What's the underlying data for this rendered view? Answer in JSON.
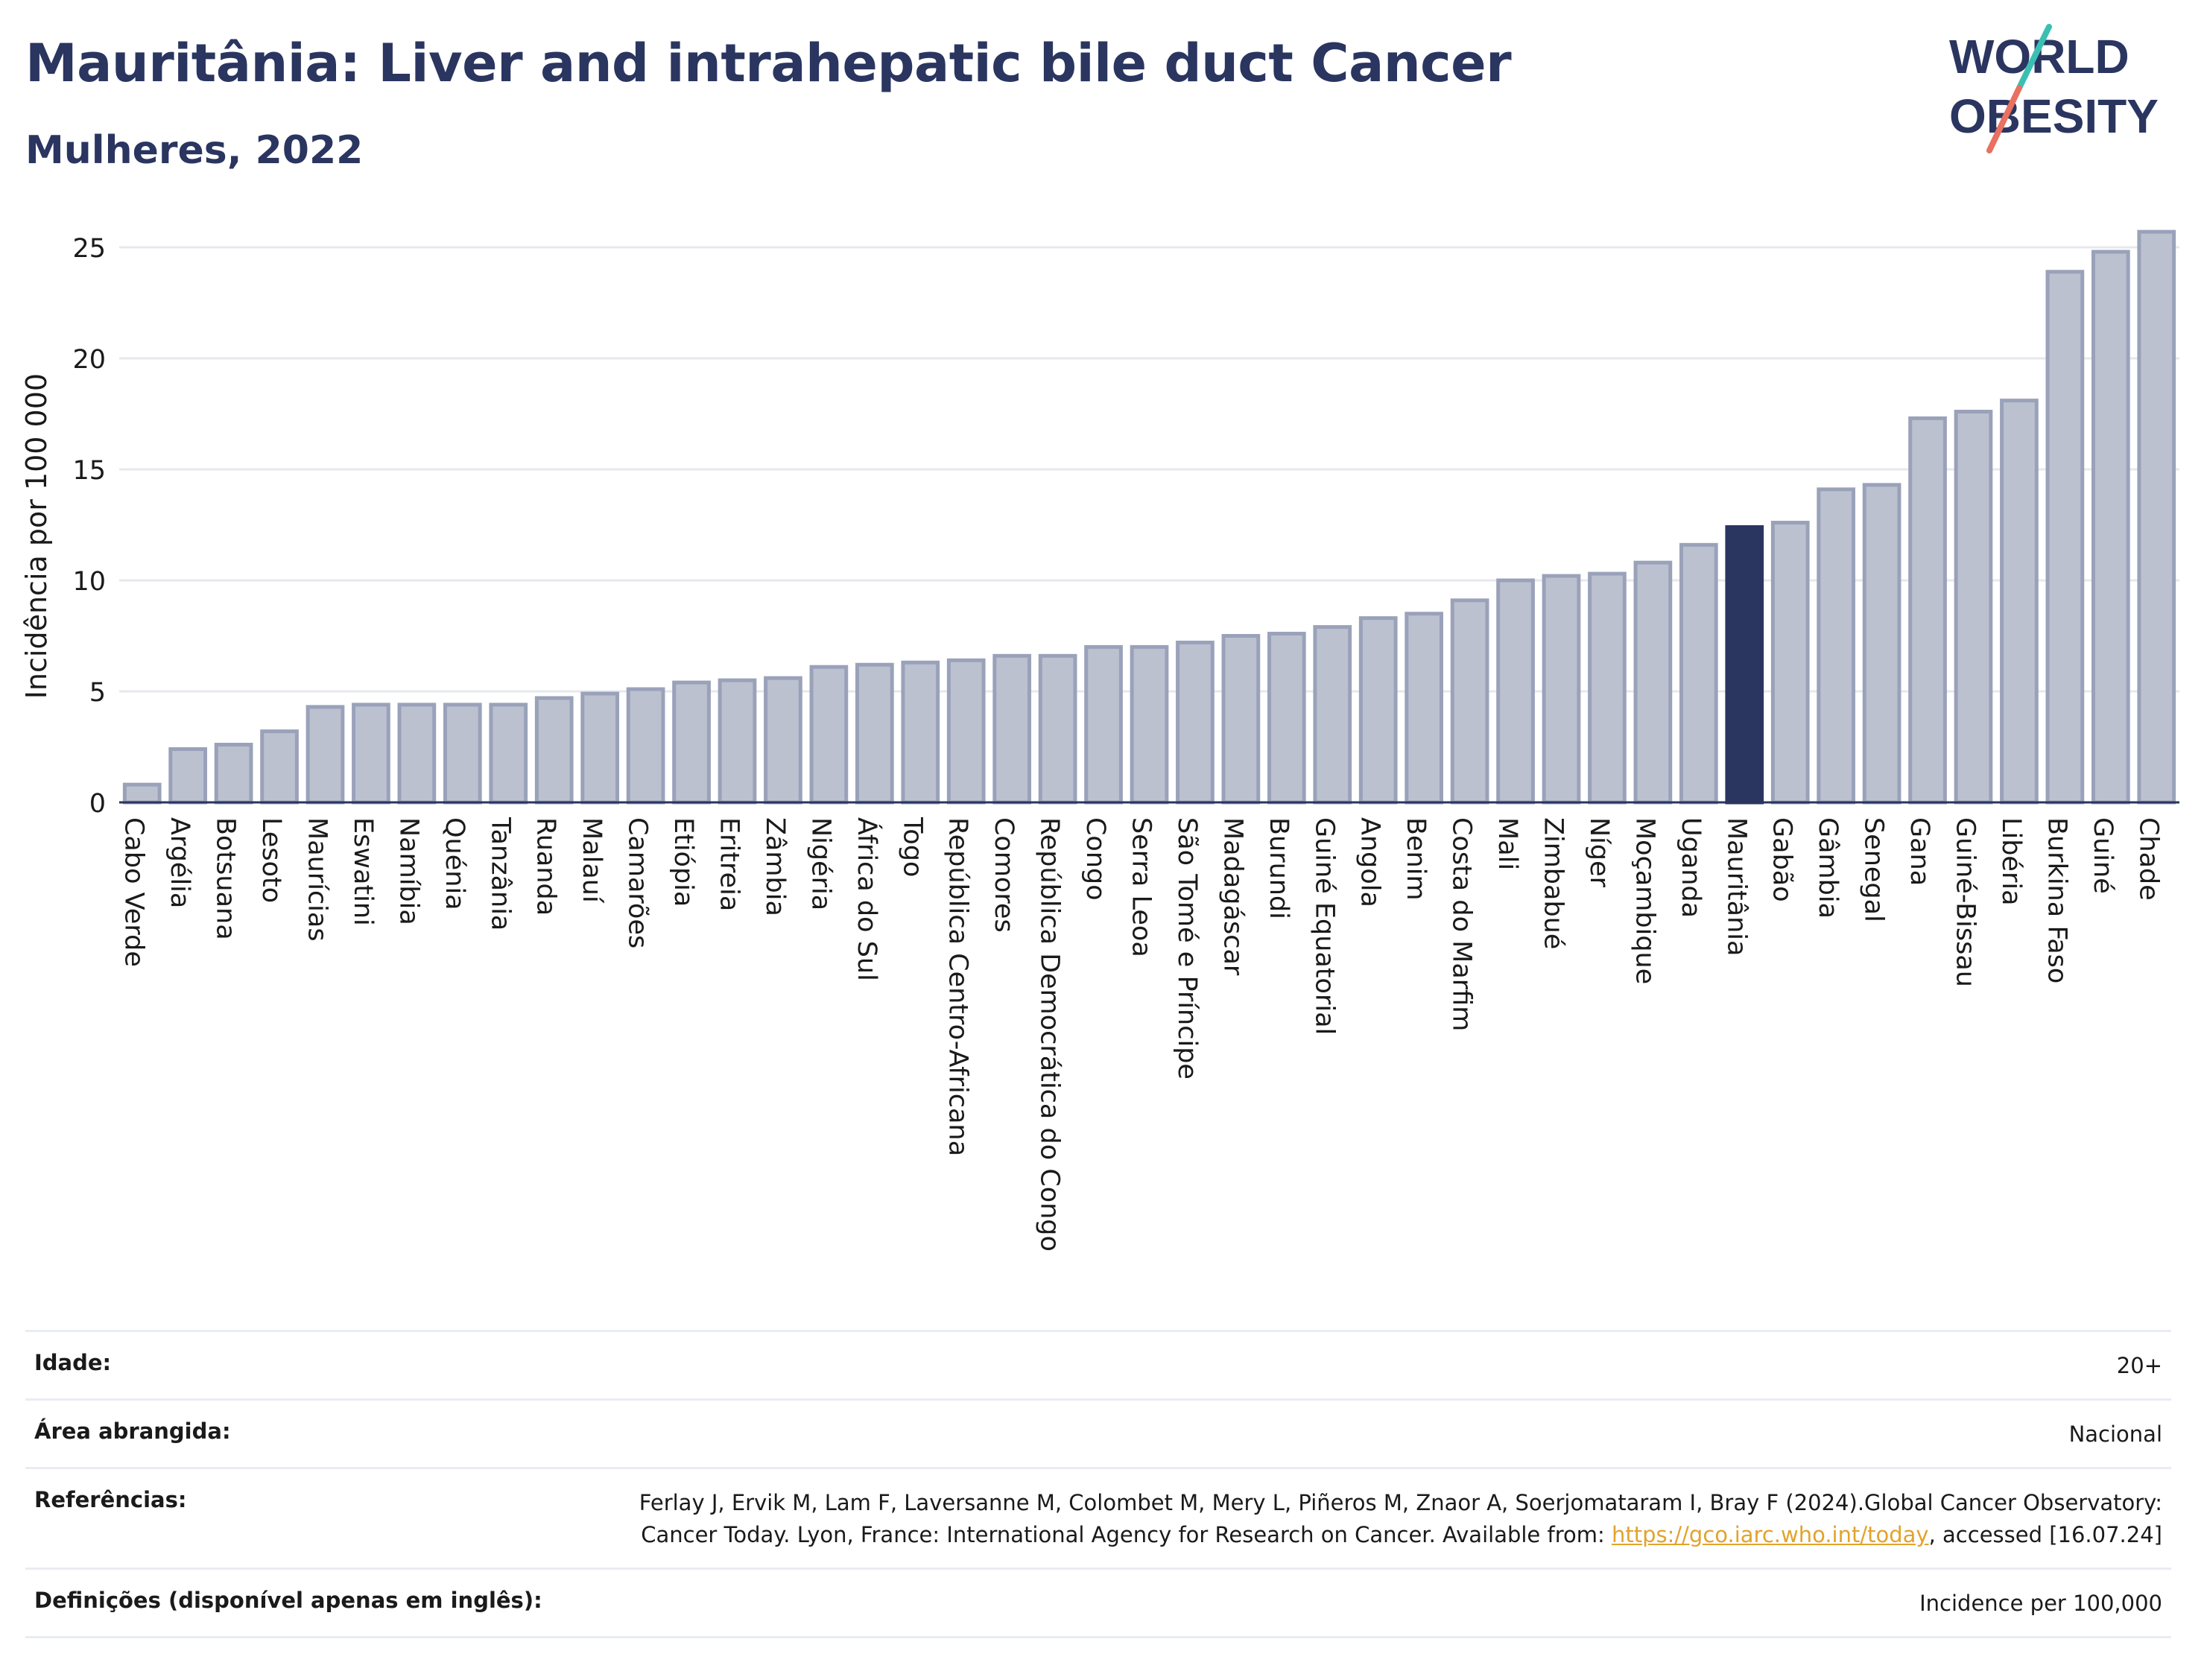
{
  "header": {
    "title": "Mauritânia: Liver and intrahepatic bile duct Cancer",
    "subtitle": "Mulheres, 2022"
  },
  "logo": {
    "line1": "WORLD",
    "line2": "OBESITY"
  },
  "colors": {
    "bar": "#bcc1d0",
    "bar_stroke": "#9aa2ba",
    "highlight": "#2a3560",
    "grid": "#e6e8ee",
    "axis": "#2a3560",
    "logo_teal": "#3bbfb3",
    "logo_coral": "#e8715f"
  },
  "chart_data": {
    "type": "bar",
    "ylabel": "Incidência por 100 000",
    "ylim": [
      0,
      26
    ],
    "yticks": [
      0,
      5,
      10,
      15,
      20,
      25
    ],
    "grid": true,
    "highlight": "Mauritânia",
    "categories": [
      "Cabo Verde",
      "Argélia",
      "Botsuana",
      "Lesoto",
      "Maurícias",
      "Eswatini",
      "Namíbia",
      "Quénia",
      "Tanzânia",
      "Ruanda",
      "Malauí",
      "Camarões",
      "Etiópia",
      "Eritreia",
      "Zâmbia",
      "Nigéria",
      "África do Sul",
      "Togo",
      "República Centro-Africana",
      "Comores",
      "República Democrática do Congo",
      "Congo",
      "Serra Leoa",
      "São Tomé e Príncipe",
      "Madagáscar",
      "Burundi",
      "Guiné Equatorial",
      "Angola",
      "Benim",
      "Costa do Marfim",
      "Mali",
      "Zimbabué",
      "Níger",
      "Moçambique",
      "Uganda",
      "Mauritânia",
      "Gabão",
      "Gâmbia",
      "Senegal",
      "Gana",
      "Guiné-Bissau",
      "Libéria",
      "Burkina Faso",
      "Guiné",
      "Chade"
    ],
    "values": [
      0.8,
      2.4,
      2.6,
      3.2,
      4.3,
      4.4,
      4.4,
      4.4,
      4.4,
      4.7,
      4.9,
      5.1,
      5.4,
      5.5,
      5.6,
      6.1,
      6.2,
      6.3,
      6.4,
      6.6,
      6.6,
      7.0,
      7.0,
      7.2,
      7.5,
      7.6,
      7.9,
      8.3,
      8.5,
      9.1,
      10.0,
      10.2,
      10.3,
      10.8,
      11.6,
      12.4,
      12.6,
      14.1,
      14.3,
      17.3,
      17.6,
      18.1,
      23.9,
      24.8,
      25.7
    ]
  },
  "meta": {
    "age_label": "Idade:",
    "age_value": "20+",
    "area_label": "Área abrangida:",
    "area_value": "Nacional",
    "refs_label": "Referências:",
    "refs_text": "Ferlay J, Ervik M, Lam F, Laversanne M, Colombet M, Mery L, Piñeros M, Znaor A, Soerjomataram I, Bray F (2024).Global Cancer Observatory: Cancer Today. Lyon, France: International Agency for Research on Cancer. Available from: ",
    "refs_link": "https://gco.iarc.who.int/today",
    "refs_tail": ", accessed [16.07.24]",
    "defs_label": "Definições (disponível apenas em inglês):",
    "defs_value": "Incidence per 100,000"
  }
}
